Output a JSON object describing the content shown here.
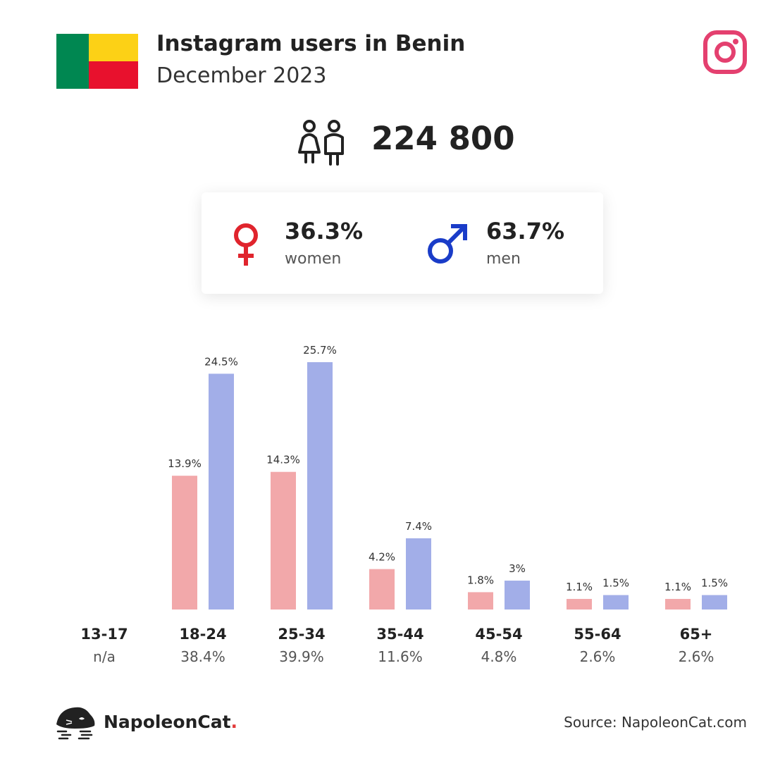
{
  "header": {
    "title": "Instagram users in Benin",
    "subtitle": "December 2023"
  },
  "flag": {
    "colors": {
      "green": "#008751",
      "yellow": "#fcd116",
      "red": "#e8112d"
    }
  },
  "platform_icon": "instagram-icon",
  "total": {
    "icon": "users-icon",
    "value": "224 800"
  },
  "gender": {
    "women": {
      "icon": "female-symbol-icon",
      "percent": "36.3%",
      "label": "women",
      "color": "#e0242d"
    },
    "men": {
      "icon": "male-symbol-icon",
      "percent": "63.7%",
      "label": "men",
      "color": "#1a3cc8"
    }
  },
  "chart_data": {
    "type": "bar",
    "categories": [
      "13-17",
      "18-24",
      "25-34",
      "35-44",
      "45-54",
      "55-64",
      "65+"
    ],
    "category_totals": [
      "n/a",
      "38.4%",
      "39.9%",
      "11.6%",
      "4.8%",
      "2.6%",
      "2.6%"
    ],
    "series": [
      {
        "values": [
          null,
          13.9,
          14.3,
          4.2,
          1.8,
          1.1,
          1.1
        ],
        "labels": [
          "",
          "13.9%",
          "14.3%",
          "4.2%",
          "1.8%",
          "1.1%",
          "1.1%"
        ],
        "color": "#f2a8aa"
      },
      {
        "values": [
          null,
          24.5,
          25.7,
          7.4,
          3.0,
          1.5,
          1.5
        ],
        "labels": [
          "",
          "24.5%",
          "25.7%",
          "7.4%",
          "3%",
          "1.5%",
          "1.5%"
        ],
        "color": "#a2aee8"
      }
    ],
    "ylim": [
      0,
      25.7
    ],
    "grid": false,
    "legend": "none"
  },
  "footer": {
    "brand_name": "NapoleonCat",
    "brand_dot": ".",
    "source": "Source: NapoleonCat.com"
  }
}
